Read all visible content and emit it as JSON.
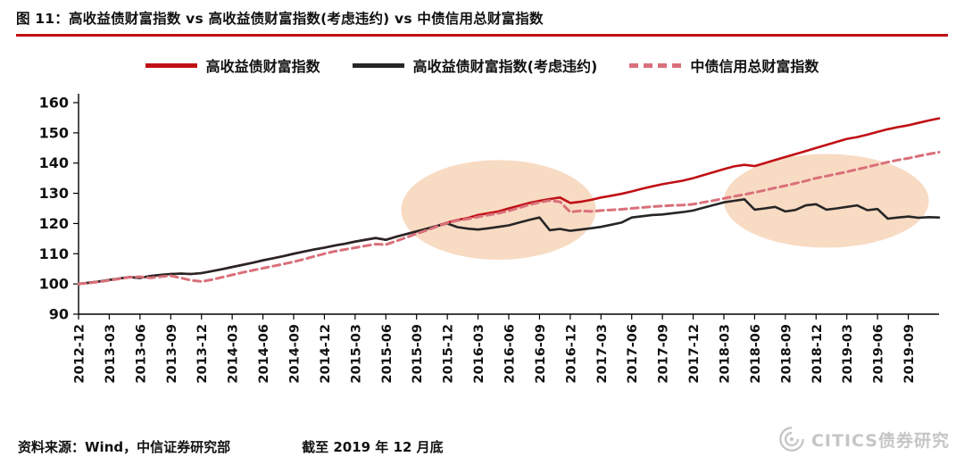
{
  "header": {
    "title": "图 11：高收益债财富指数 vs 高收益债财富指数(考虑违约) vs 中债信用总财富指数"
  },
  "legend": {
    "items": [
      {
        "label": "高收益债财富指数",
        "color": "#c01015",
        "style": "solid"
      },
      {
        "label": "高收益债财富指数(考虑违约)",
        "color": "#262626",
        "style": "solid"
      },
      {
        "label": "中债信用总财富指数",
        "color": "#d9707a",
        "style": "dashed"
      }
    ]
  },
  "footer": {
    "source": "资料来源：Wind，中信证券研究部",
    "as_of": "截至 2019 年 12 月底"
  },
  "watermark": {
    "text": "CITICS债券研究"
  },
  "chart_data": {
    "type": "line",
    "title": "高收益债财富指数 vs 高收益债财富指数(考虑违约) vs 中债信用总财富指数",
    "xlabel": "",
    "ylabel": "",
    "ylim": [
      90,
      160
    ],
    "yticks": [
      90,
      100,
      110,
      120,
      130,
      140,
      150,
      160
    ],
    "grid": false,
    "legend_position": "top",
    "x_start": "2012-12",
    "x_step_months": 1,
    "x_tick_labels": [
      "2012-12",
      "2013-03",
      "2013-06",
      "2013-09",
      "2013-12",
      "2014-03",
      "2014-06",
      "2014-09",
      "2014-12",
      "2015-03",
      "2015-06",
      "2015-09",
      "2015-12",
      "2016-03",
      "2016-06",
      "2016-09",
      "2016-12",
      "2017-03",
      "2017-06",
      "2017-09",
      "2017-12",
      "2018-03",
      "2018-06",
      "2018-09",
      "2018-12",
      "2019-03",
      "2019-06",
      "2019-09"
    ],
    "x_tick_month_index": [
      0,
      3,
      6,
      9,
      12,
      15,
      18,
      21,
      24,
      27,
      30,
      33,
      36,
      39,
      42,
      45,
      48,
      51,
      54,
      57,
      60,
      63,
      66,
      69,
      72,
      75,
      78,
      81
    ],
    "series": [
      {
        "name": "高收益债财富指数",
        "color": "#c01015",
        "dash": null,
        "values": [
          100,
          100.4,
          100.8,
          101.3,
          101.8,
          102.3,
          102,
          102.6,
          103,
          103.3,
          103.4,
          103.3,
          103.6,
          104.2,
          104.9,
          105.6,
          106.3,
          107,
          107.8,
          108.5,
          109.2,
          110,
          110.7,
          111.4,
          112,
          112.7,
          113.3,
          114,
          114.6,
          115.2,
          114.6,
          115.6,
          116.5,
          117.4,
          118.3,
          119.2,
          120.3,
          121.2,
          121.8,
          122.8,
          123.4,
          124,
          125,
          125.9,
          126.8,
          127.5,
          128.1,
          128.6,
          126.8,
          127.2,
          127.8,
          128.6,
          129.2,
          129.8,
          130.6,
          131.5,
          132.3,
          133,
          133.6,
          134.2,
          135,
          136,
          137,
          138,
          138.9,
          139.4,
          139,
          140,
          141,
          142,
          143,
          144,
          145,
          146,
          147,
          148,
          148.6,
          149.4,
          150.3,
          151.2,
          151.9,
          152.5,
          153.3,
          154.1,
          154.8
        ]
      },
      {
        "name": "高收益债财富指数(考虑违约)",
        "color": "#262626",
        "dash": null,
        "values": [
          100,
          100.4,
          100.8,
          101.3,
          101.8,
          102.3,
          102,
          102.6,
          103,
          103.3,
          103.4,
          103.3,
          103.6,
          104.2,
          104.9,
          105.6,
          106.3,
          107,
          107.8,
          108.5,
          109.2,
          110,
          110.7,
          111.4,
          112,
          112.7,
          113.3,
          114,
          114.6,
          115.2,
          114.6,
          115.6,
          116.5,
          117.4,
          118.3,
          119.2,
          120,
          118.8,
          118.3,
          118,
          118.4,
          118.9,
          119.4,
          120.3,
          121.2,
          122,
          117.8,
          118.2,
          117.6,
          118,
          118.4,
          118.9,
          119.6,
          120.3,
          122,
          122.4,
          122.8,
          123,
          123.4,
          123.8,
          124.3,
          125.2,
          126.1,
          127,
          127.5,
          128,
          124.6,
          125,
          125.5,
          124,
          124.5,
          126,
          126.4,
          124.6,
          125,
          125.5,
          126,
          124.4,
          124.8,
          121.6,
          122,
          122.3,
          121.9,
          122.1,
          122
        ]
      },
      {
        "name": "中债信用总财富指数",
        "color": "#d9707a",
        "dash": [
          8,
          5
        ],
        "values": [
          100,
          100.3,
          100.7,
          101.2,
          101.7,
          102.2,
          102.4,
          102,
          102.4,
          102.7,
          102,
          101.2,
          100.8,
          101.4,
          102.2,
          103,
          103.8,
          104.5,
          105.2,
          105.9,
          106.6,
          107.3,
          108.2,
          109.1,
          110,
          110.8,
          111.4,
          112,
          112.6,
          113.2,
          113,
          114.2,
          115.4,
          116.6,
          117.8,
          119,
          120.2,
          121,
          121.5,
          122.2,
          122.8,
          123.4,
          124.2,
          125.2,
          126.2,
          127,
          127.6,
          127.2,
          123.8,
          124.2,
          124,
          124.3,
          124.5,
          124.7,
          125,
          125.3,
          125.6,
          125.8,
          126,
          126.1,
          126.4,
          127,
          127.6,
          128.3,
          129,
          129.6,
          130.3,
          131,
          131.8,
          132.5,
          133.3,
          134.1,
          135,
          135.7,
          136.4,
          137.1,
          137.9,
          138.7,
          139.5,
          140.3,
          141,
          141.6,
          142.3,
          143,
          143.6
        ]
      }
    ],
    "highlights": {
      "color": "#f2be92",
      "opacity": 0.55,
      "ellipses": [
        {
          "cx_month": 41,
          "cy_value": 124.5,
          "rx_months": 9.5,
          "ry_values": 16.5
        },
        {
          "cx_month": 73,
          "cy_value": 127.5,
          "rx_months": 10,
          "ry_values": 15.5
        }
      ]
    }
  }
}
